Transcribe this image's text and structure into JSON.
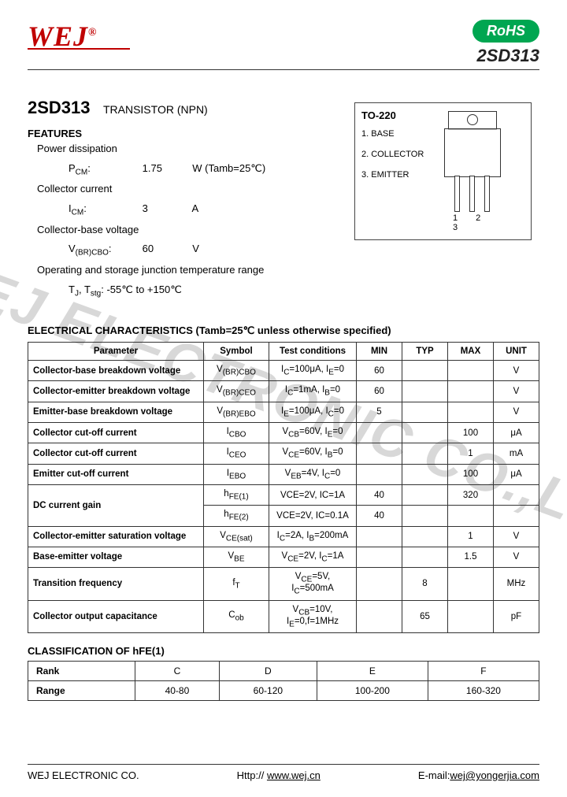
{
  "header": {
    "logo_text": "WEJ",
    "reg_mark": "®",
    "rohs": "RoHS",
    "part_number": "2SD313"
  },
  "watermark": "WEJ ELECTRONIC CO.,LTD",
  "title": {
    "part": "2SD313",
    "type": "TRANSISTOR (NPN)"
  },
  "features": {
    "heading": "FEATURES",
    "power_diss_label": "Power dissipation",
    "pcm_symbol": "PCM:",
    "pcm_value": "1.75",
    "pcm_unit": "W (Tamb=25℃)",
    "cc_label": "Collector current",
    "icm_symbol": "ICM:",
    "icm_value": "3",
    "icm_unit": "A",
    "cbv_label": "Collector-base voltage",
    "vbrcbo_symbol": "V(BR)CBO:",
    "vbrcbo_value": "60",
    "vbrcbo_unit": "V",
    "temp_label": "Operating and storage junction temperature range",
    "temp_symbol": "TJ, Tstg:",
    "temp_value": "-55℃ to +150℃"
  },
  "package": {
    "name": "TO-220",
    "pin1": "1. BASE",
    "pin2": "2. COLLECTOR",
    "pin3": "3. EMITTER",
    "pin_nums": "1 2 3"
  },
  "elec_heading": "ELECTRICAL CHARACTERISTICS (Tamb=25℃    unless   otherwise   specified)",
  "elec_headers": [
    "Parameter",
    "Symbol",
    "Test    conditions",
    "MIN",
    "TYP",
    "MAX",
    "UNIT"
  ],
  "elec_rows": [
    {
      "param": "Collector-base breakdown voltage",
      "sym": "V(BR)CBO",
      "cond": "IC=100μA, IE=0",
      "min": "60",
      "typ": "",
      "max": "",
      "unit": "V"
    },
    {
      "param": "Collector-emitter breakdown voltage",
      "sym": "V(BR)CEO",
      "cond": "IC=1mA, IB=0",
      "min": "60",
      "typ": "",
      "max": "",
      "unit": "V"
    },
    {
      "param": "Emitter-base breakdown voltage",
      "sym": "V(BR)EBO",
      "cond": "IE=100μA, IC=0",
      "min": "5",
      "typ": "",
      "max": "",
      "unit": "V"
    },
    {
      "param": "Collector cut-off current",
      "sym": "ICBO",
      "cond": "VCB=60V, IE=0",
      "min": "",
      "typ": "",
      "max": "100",
      "unit": "μA"
    },
    {
      "param": "Collector cut-off current",
      "sym": "ICEO",
      "cond": "VCE=60V, IB=0",
      "min": "",
      "typ": "",
      "max": "1",
      "unit": "mA"
    },
    {
      "param": "Emitter cut-off current",
      "sym": "IEBO",
      "cond": "VEB=4V, IC=0",
      "min": "",
      "typ": "",
      "max": "100",
      "unit": "μA"
    }
  ],
  "dc_gain": {
    "label": "DC current gain",
    "r1": {
      "sym": "hFE(1)",
      "cond": "VCE=2V, IC=1A",
      "min": "40",
      "typ": "",
      "max": "320",
      "unit": ""
    },
    "r2": {
      "sym": "hFE(2)",
      "cond": "VCE=2V, IC=0.1A",
      "min": "40",
      "typ": "",
      "max": "",
      "unit": ""
    }
  },
  "elec_rows2": [
    {
      "param": "Collector-emitter saturation voltage",
      "sym": "VCE(sat)",
      "cond": "IC=2A, IB=200mA",
      "min": "",
      "typ": "",
      "max": "1",
      "unit": "V"
    },
    {
      "param": "Base-emitter voltage",
      "sym": "VBE",
      "cond": "VCE=2V, IC=1A",
      "min": "",
      "typ": "",
      "max": "1.5",
      "unit": "V"
    },
    {
      "param": "Transition frequency",
      "sym": "fT",
      "cond": "VCE=5V, IC=500mA",
      "min": "",
      "typ": "8",
      "max": "",
      "unit": "MHz"
    },
    {
      "param": "Collector output capacitance",
      "sym": "Cob",
      "cond": "VCB=10V, IE=0,f=1MHz",
      "min": "",
      "typ": "65",
      "max": "",
      "unit": "pF"
    }
  ],
  "class_heading": "CLASSIFICATION OF   hFE(1)",
  "class_table": {
    "row1": [
      "Rank",
      "C",
      "D",
      "E",
      "F"
    ],
    "row2": [
      "Range",
      "40-80",
      "60-120",
      "100-200",
      "160-320"
    ]
  },
  "footer": {
    "company": "WEJ ELECTRONIC CO.",
    "url_label": "Http://",
    "url": "www.wej.cn",
    "email_label": "E-mail:",
    "email": "wej@yongerjia.com"
  }
}
